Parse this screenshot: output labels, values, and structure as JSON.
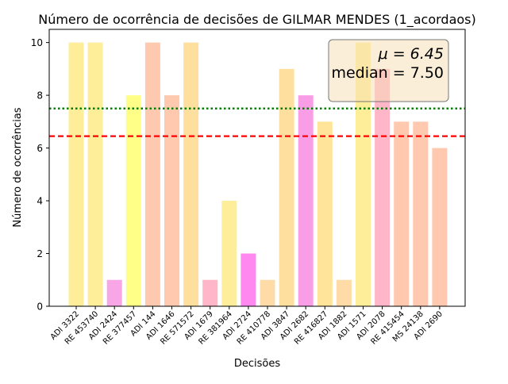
{
  "chart_data": {
    "type": "bar",
    "title": "Número de ocorrência de decisões de GILMAR MENDES (1_acordaos)",
    "xlabel": "Decisões",
    "ylabel": "Número de ocorrências",
    "ylim": [
      0,
      10.5
    ],
    "yticks": [
      0,
      2,
      4,
      6,
      8,
      10
    ],
    "grid": false,
    "categories": [
      "ADI 3322",
      "RE 453740",
      "ADI 2424",
      "RE 377457",
      "ADI 144",
      "ADI 1646",
      "RE 571572",
      "ADI 1679",
      "RE 381964",
      "ADI 2724",
      "RE 410778",
      "ADI 3847",
      "ADI 2682",
      "RE 416827",
      "ADI 1882",
      "ADI 1571",
      "ADI 2078",
      "RE 415454",
      "MS 24138",
      "ADI 2690"
    ],
    "values": [
      10,
      10,
      1,
      8,
      10,
      8,
      10,
      1,
      4,
      2,
      1,
      9,
      8,
      7,
      1,
      10,
      9,
      7,
      7,
      6
    ],
    "bar_colors": [
      "#ffee99",
      "#ffee99",
      "#f9a6e6",
      "#ffff88",
      "#ffc9b0",
      "#ffc9b0",
      "#ffdf9e",
      "#ffb6c8",
      "#ffee99",
      "#ff88f0",
      "#ffdba8",
      "#ffdf9e",
      "#f99ee6",
      "#ffe499",
      "#ffdba8",
      "#ffee99",
      "#ffb6c8",
      "#ffc9b0",
      "#ffc9b0",
      "#ffc9b0"
    ],
    "mean": 6.45,
    "median": 7.5,
    "mean_line_color": "#ff0000",
    "median_line_color": "#008000",
    "annotation": {
      "mean_label": "μ = 6.45",
      "median_label": "median = 7.50",
      "position": "top-right"
    }
  }
}
